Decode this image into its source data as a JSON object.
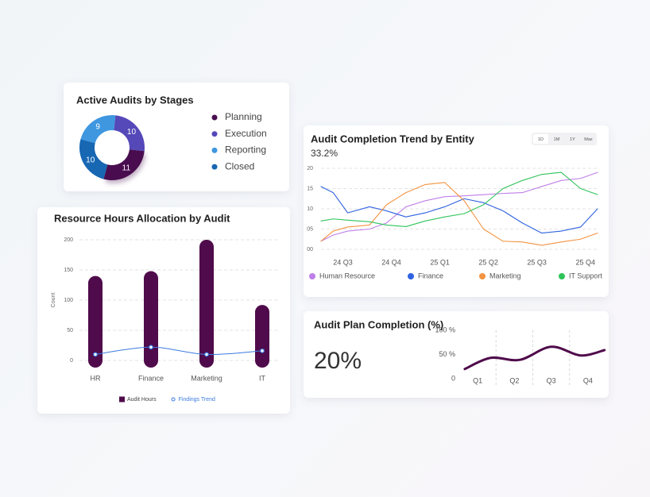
{
  "chart_data": [
    {
      "type": "pie",
      "title": "Active Audits by Stages",
      "donut": true,
      "categories": [
        "Planning",
        "Execution",
        "Reporting",
        "Closed"
      ],
      "values": [
        11,
        10,
        9,
        10
      ],
      "colors": [
        "#4a0d4f",
        "#5548b8",
        "#3f97e0",
        "#1767b3"
      ],
      "legend": "right"
    },
    {
      "type": "bar",
      "title": "Resource Hours Allocation by Audit",
      "ylabel": "Count",
      "categories": [
        "HR",
        "Finance",
        "Marketing",
        "IT"
      ],
      "series": [
        {
          "name": "Audit Hours",
          "type": "bar",
          "color": "#4f0b4b",
          "values": [
            140,
            148,
            200,
            92
          ]
        },
        {
          "name": "Findings Trend",
          "type": "line",
          "smooth": true,
          "color": "#3b7be0",
          "values": [
            10,
            22,
            10,
            16
          ]
        }
      ],
      "ylim": [
        0,
        200
      ],
      "yticks": [
        0,
        50,
        100,
        150,
        200
      ],
      "grid": true,
      "legend": "bottom"
    },
    {
      "type": "line",
      "title": "Audit Completion Trend by Entity",
      "subtitle": "33.2%",
      "range_buttons": [
        "1D",
        "1M",
        "1Y",
        "Max"
      ],
      "x": [
        0.55,
        0.8,
        1.1,
        1.55,
        1.9,
        2.3,
        2.7,
        3.1,
        3.5,
        3.9,
        4.3,
        4.7,
        5.1,
        5.5,
        5.9,
        6.25
      ],
      "xlim": [
        0.55,
        6.25
      ],
      "xticks": [
        {
          "value": 1,
          "label": "24 Q3"
        },
        {
          "value": 2,
          "label": "24 Q4"
        },
        {
          "value": 3,
          "label": "25 Q1"
        },
        {
          "value": 4,
          "label": "25 Q2"
        },
        {
          "value": 5,
          "label": "25 Q3"
        },
        {
          "value": 6,
          "label": "25 Q4"
        }
      ],
      "ylim": [
        0,
        20
      ],
      "yticks": [
        {
          "value": 0,
          "label": "00"
        },
        {
          "value": 5,
          "label": "05"
        },
        10,
        15,
        20
      ],
      "grid": true,
      "legend": "bottom",
      "series": [
        {
          "name": "Human Resource",
          "color": "#bf7fe8",
          "values": [
            2,
            3.5,
            4.5,
            5,
            6.5,
            10.5,
            12,
            13,
            13.2,
            13.5,
            13.8,
            14,
            15.5,
            17,
            17.5,
            19
          ]
        },
        {
          "name": "Finance",
          "color": "#2f62e0",
          "values": [
            15.5,
            14,
            9,
            10.5,
            9.5,
            8,
            9,
            10.5,
            12.5,
            11.5,
            9.5,
            6.5,
            4,
            4.5,
            5.5,
            10
          ]
        },
        {
          "name": "Marketing",
          "color": "#f39341",
          "values": [
            2,
            4.5,
            5.5,
            6,
            11,
            14,
            16,
            16.5,
            12,
            5,
            2,
            1.8,
            1,
            1.8,
            2.5,
            4
          ]
        },
        {
          "name": "IT Support",
          "color": "#2ec45a",
          "values": [
            7,
            7.5,
            7.2,
            6.8,
            6,
            5.6,
            7,
            8,
            8.8,
            11,
            15,
            17,
            18.5,
            19,
            15,
            13.5
          ]
        }
      ]
    },
    {
      "type": "line",
      "title": "Audit Plan Completion (%)",
      "headline": "20%",
      "x": [
        0.65,
        1.35,
        2.15,
        3,
        3.8,
        4.45
      ],
      "xlim": [
        0.5,
        4.5
      ],
      "xticks": [
        {
          "value": 1,
          "label": "Q1"
        },
        {
          "value": 2,
          "label": "Q2"
        },
        {
          "value": 3,
          "label": "Q3"
        },
        {
          "value": 4,
          "label": "Q4"
        }
      ],
      "ylim": [
        0,
        100
      ],
      "yticks": [
        0,
        {
          "value": 50,
          "label": "50 %"
        },
        {
          "value": 100,
          "label": "100 %"
        }
      ],
      "series": [
        {
          "color": "#4f0b4b",
          "smooth": true,
          "values": [
            20,
            43,
            39,
            66,
            48,
            59
          ]
        }
      ]
    }
  ]
}
